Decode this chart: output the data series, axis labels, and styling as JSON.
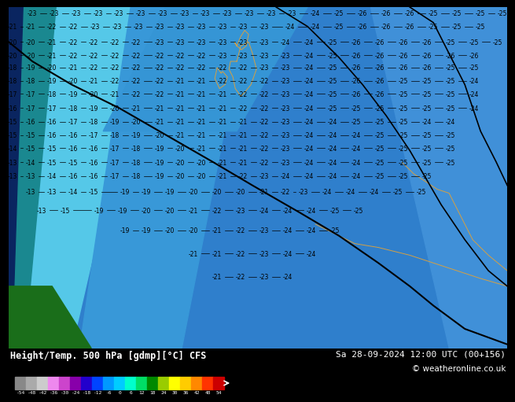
{
  "title_left": "Height/Temp. 500 hPa [gdmp][°C] CFS",
  "title_right": "Sa 28-09-2024 12:00 UTC (00+156)",
  "copyright": "© weatheronline.co.uk",
  "colorbar_values": [
    -54,
    -48,
    -42,
    -36,
    -30,
    -24,
    -18,
    -12,
    -6,
    0,
    6,
    12,
    18,
    24,
    30,
    36,
    42,
    48,
    54
  ],
  "colorbar_colors": [
    "#999999",
    "#bbbbbb",
    "#dddddd",
    "#ee88ee",
    "#cc44cc",
    "#8800aa",
    "#2200cc",
    "#0044ff",
    "#0099ff",
    "#00ccff",
    "#00ffcc",
    "#00dd66",
    "#008800",
    "#99cc00",
    "#ffff00",
    "#ffcc00",
    "#ff8800",
    "#ff3300",
    "#cc0000"
  ],
  "bg_dark_blue": "#1a4fa0",
  "bg_medium_blue": "#2f7fcc",
  "bg_light_blue": "#4aaee0",
  "bg_cyan": "#55c8e8",
  "bg_dark_cyan": "#33b8c8",
  "bg_green": "#1a6e1a",
  "contour_color": "#000000",
  "country_outline_color": "#d4a044",
  "label_color": "#000000",
  "bottom_bg": "#000000",
  "text_white": "#ffffff"
}
